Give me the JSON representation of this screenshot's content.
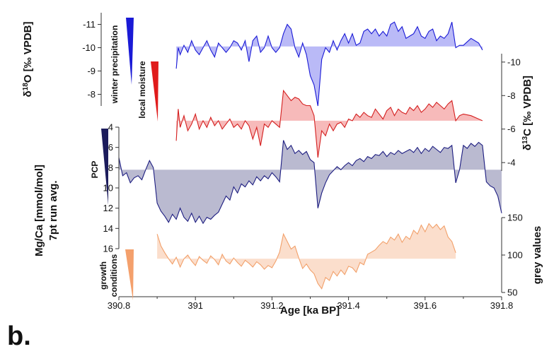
{
  "chart_data": {
    "type": "line",
    "panel_label": "b.",
    "xlabel": "Age [ka BP]",
    "xlim": [
      390.8,
      391.8
    ],
    "xticks": [
      "390.8",
      "391",
      "391.2",
      "391.4",
      "391.6",
      "391.8"
    ],
    "colors": {
      "d18O": "#1a1ad6",
      "d13C": "#d41f1f",
      "mgca": "#1c1c80",
      "grey": "#f2a06a"
    },
    "series": [
      {
        "name": "δ18O",
        "axis_label": "δ18O [‰ VPDB]",
        "axis_side": "left",
        "ylim": [
          -11.5,
          -7.5
        ],
        "reversed": true,
        "yticks": [
          "-11",
          "-10",
          "-9",
          "-8"
        ],
        "baseline": -10.05,
        "indicator": "winter precipitation",
        "x": [
          390.95,
          390.955,
          390.96,
          390.97,
          390.98,
          390.99,
          391.0,
          391.01,
          391.02,
          391.03,
          391.04,
          391.05,
          391.06,
          391.07,
          391.08,
          391.09,
          391.1,
          391.11,
          391.12,
          391.13,
          391.14,
          391.15,
          391.16,
          391.17,
          391.18,
          391.19,
          391.2,
          391.21,
          391.22,
          391.23,
          391.24,
          391.25,
          391.26,
          391.27,
          391.28,
          391.29,
          391.3,
          391.31,
          391.32,
          391.33,
          391.34,
          391.35,
          391.36,
          391.37,
          391.38,
          391.39,
          391.4,
          391.41,
          391.42,
          391.43,
          391.44,
          391.45,
          391.46,
          391.47,
          391.48,
          391.49,
          391.5,
          391.51,
          391.52,
          391.53,
          391.54,
          391.55,
          391.56,
          391.57,
          391.58,
          391.59,
          391.6,
          391.61,
          391.62,
          391.63,
          391.64,
          391.65,
          391.66,
          391.67,
          391.68,
          391.69,
          391.7,
          391.72,
          391.74,
          391.75
        ],
        "values": [
          -9.1,
          -10.0,
          -9.7,
          -10.1,
          -9.8,
          -10.3,
          -9.9,
          -9.7,
          -10.0,
          -10.3,
          -9.9,
          -9.6,
          -10.2,
          -10.0,
          -9.8,
          -10.0,
          -10.3,
          -10.2,
          -9.9,
          -10.3,
          -9.4,
          -10.3,
          -10.5,
          -9.8,
          -10.0,
          -10.5,
          -10.0,
          -9.8,
          -10.0,
          -10.6,
          -11.0,
          -10.8,
          -10.0,
          -9.6,
          -10.2,
          -9.7,
          -8.8,
          -8.4,
          -7.5,
          -9.5,
          -10.0,
          -9.8,
          -10.3,
          -9.9,
          -10.3,
          -10.6,
          -10.2,
          -10.6,
          -10.1,
          -10.2,
          -10.7,
          -10.8,
          -10.6,
          -10.8,
          -10.5,
          -10.7,
          -10.5,
          -11.0,
          -11.1,
          -10.7,
          -10.9,
          -10.4,
          -10.5,
          -10.6,
          -10.9,
          -10.5,
          -10.4,
          -10.7,
          -10.8,
          -10.3,
          -10.5,
          -10.4,
          -10.6,
          -11.1,
          -10.0,
          -10.1,
          -10.1,
          -10.4,
          -10.2,
          -9.9
        ]
      },
      {
        "name": "δ13C",
        "axis_label": "δ13C [‰ VPDB]",
        "axis_side": "right",
        "ylim": [
          -10.5,
          -3.5
        ],
        "reversed": true,
        "yticks": [
          "-10",
          "-8",
          "-6",
          "-4"
        ],
        "baseline": -6.5,
        "indicator": "local moisture",
        "x": [
          390.95,
          390.955,
          390.96,
          390.97,
          390.98,
          390.99,
          391.0,
          391.01,
          391.02,
          391.03,
          391.04,
          391.05,
          391.06,
          391.07,
          391.08,
          391.09,
          391.1,
          391.11,
          391.12,
          391.13,
          391.14,
          391.15,
          391.16,
          391.17,
          391.18,
          391.19,
          391.2,
          391.21,
          391.22,
          391.23,
          391.24,
          391.25,
          391.26,
          391.27,
          391.28,
          391.29,
          391.3,
          391.31,
          391.32,
          391.33,
          391.34,
          391.35,
          391.36,
          391.37,
          391.38,
          391.39,
          391.4,
          391.41,
          391.42,
          391.43,
          391.44,
          391.45,
          391.46,
          391.47,
          391.48,
          391.49,
          391.5,
          391.51,
          391.52,
          391.53,
          391.54,
          391.55,
          391.56,
          391.57,
          391.58,
          391.59,
          391.6,
          391.61,
          391.62,
          391.63,
          391.64,
          391.65,
          391.66,
          391.67,
          391.68,
          391.69,
          391.7,
          391.72,
          391.74,
          391.75
        ],
        "values": [
          -5.3,
          -7.2,
          -6.1,
          -6.8,
          -5.9,
          -6.3,
          -6.9,
          -6.0,
          -6.5,
          -6.1,
          -6.7,
          -6.2,
          -6.5,
          -6.0,
          -6.3,
          -6.6,
          -6.1,
          -6.3,
          -6.0,
          -6.5,
          -6.2,
          -5.4,
          -6.1,
          -5.0,
          -6.3,
          -6.1,
          -6.5,
          -6.3,
          -6.1,
          -8.3,
          -8.0,
          -7.7,
          -7.9,
          -7.8,
          -7.5,
          -7.4,
          -7.4,
          -6.8,
          -4.3,
          -5.9,
          -5.6,
          -6.3,
          -5.9,
          -6.3,
          -6.4,
          -6.1,
          -6.6,
          -6.5,
          -6.9,
          -6.7,
          -7.0,
          -6.8,
          -6.7,
          -7.2,
          -6.9,
          -6.6,
          -7.1,
          -7.3,
          -6.8,
          -7.2,
          -7.0,
          -6.9,
          -7.3,
          -7.1,
          -7.4,
          -7.0,
          -7.2,
          -7.5,
          -7.3,
          -7.6,
          -7.4,
          -7.2,
          -7.5,
          -7.7,
          -6.5,
          -6.8,
          -6.9,
          -6.8,
          -6.6,
          -6.5
        ]
      },
      {
        "name": "Mg/Ca",
        "axis_label_line1": "Mg/Ca [mmol/mol]",
        "axis_label_line2": "7pt run avg.",
        "axis_side": "left",
        "ylim": [
          4,
          16
        ],
        "reversed": true,
        "yticks": [
          "4",
          "6",
          "8",
          "10",
          "12",
          "14",
          "16"
        ],
        "baseline": 8.2,
        "indicator": "PCP",
        "x": [
          390.8,
          390.81,
          390.82,
          390.83,
          390.84,
          390.85,
          390.86,
          390.87,
          390.88,
          390.89,
          390.9,
          390.91,
          390.92,
          390.93,
          390.94,
          390.95,
          390.96,
          390.97,
          390.98,
          390.99,
          391.0,
          391.01,
          391.02,
          391.03,
          391.04,
          391.05,
          391.06,
          391.07,
          391.08,
          391.09,
          391.1,
          391.11,
          391.12,
          391.13,
          391.14,
          391.15,
          391.16,
          391.17,
          391.18,
          391.19,
          391.2,
          391.21,
          391.22,
          391.23,
          391.24,
          391.25,
          391.26,
          391.27,
          391.28,
          391.29,
          391.3,
          391.31,
          391.32,
          391.33,
          391.34,
          391.35,
          391.36,
          391.37,
          391.38,
          391.39,
          391.4,
          391.41,
          391.42,
          391.43,
          391.44,
          391.45,
          391.46,
          391.47,
          391.48,
          391.49,
          391.5,
          391.51,
          391.52,
          391.53,
          391.54,
          391.55,
          391.56,
          391.57,
          391.58,
          391.59,
          391.6,
          391.61,
          391.62,
          391.63,
          391.64,
          391.65,
          391.66,
          391.67,
          391.68,
          391.69,
          391.7,
          391.71,
          391.72,
          391.73,
          391.74,
          391.75,
          391.76,
          391.77,
          391.78,
          391.79,
          391.8
        ],
        "values": [
          7.0,
          8.8,
          8.5,
          9.5,
          9.0,
          8.8,
          9.2,
          8.2,
          7.3,
          8.0,
          11.5,
          12.3,
          12.8,
          13.4,
          12.6,
          13.1,
          12.0,
          12.9,
          13.3,
          12.5,
          13.4,
          12.8,
          13.5,
          12.9,
          13.1,
          12.7,
          12.4,
          11.6,
          10.8,
          11.2,
          9.9,
          10.5,
          9.6,
          9.9,
          9.3,
          9.7,
          8.9,
          9.3,
          8.8,
          9.1,
          8.5,
          8.9,
          9.4,
          5.3,
          6.2,
          5.8,
          6.6,
          6.3,
          6.7,
          6.4,
          7.2,
          7.5,
          12.0,
          10.5,
          9.5,
          8.7,
          8.3,
          7.9,
          8.2,
          7.8,
          7.5,
          7.8,
          7.3,
          7.1,
          7.4,
          6.9,
          7.1,
          6.7,
          6.8,
          6.4,
          6.9,
          6.5,
          6.7,
          6.3,
          6.6,
          6.4,
          6.2,
          6.5,
          6.0,
          6.6,
          6.1,
          6.4,
          5.9,
          6.2,
          6.5,
          6.0,
          6.1,
          5.8,
          9.5,
          8.2,
          5.8,
          6.1,
          5.6,
          5.9,
          5.5,
          5.8,
          9.4,
          9.8,
          10.0,
          10.8,
          12.5
        ]
      },
      {
        "name": "grey values",
        "axis_label": "grey values",
        "axis_side": "right",
        "ylim": [
          50,
          150
        ],
        "reversed": false,
        "yticks": [
          "50",
          "100",
          "150"
        ],
        "baseline": 95,
        "indicator": "growth conditions",
        "x": [
          390.9,
          390.91,
          390.92,
          390.93,
          390.94,
          390.95,
          390.96,
          390.97,
          390.98,
          390.99,
          391.0,
          391.01,
          391.02,
          391.03,
          391.04,
          391.05,
          391.06,
          391.07,
          391.08,
          391.09,
          391.1,
          391.11,
          391.12,
          391.13,
          391.14,
          391.15,
          391.16,
          391.17,
          391.18,
          391.19,
          391.2,
          391.21,
          391.22,
          391.23,
          391.24,
          391.25,
          391.26,
          391.27,
          391.28,
          391.29,
          391.3,
          391.31,
          391.32,
          391.33,
          391.34,
          391.35,
          391.36,
          391.37,
          391.38,
          391.39,
          391.4,
          391.41,
          391.42,
          391.43,
          391.44,
          391.45,
          391.46,
          391.47,
          391.48,
          391.49,
          391.5,
          391.51,
          391.52,
          391.53,
          391.54,
          391.55,
          391.56,
          391.57,
          391.58,
          391.59,
          391.6,
          391.61,
          391.62,
          391.63,
          391.64,
          391.65,
          391.66,
          391.67,
          391.68
        ],
        "values": [
          128,
          112,
          103,
          95,
          88,
          97,
          84,
          95,
          100,
          92,
          86,
          98,
          93,
          89,
          99,
          94,
          87,
          101,
          92,
          88,
          96,
          90,
          85,
          93,
          89,
          84,
          91,
          87,
          81,
          86,
          83,
          92,
          104,
          128,
          118,
          108,
          112,
          96,
          82,
          88,
          80,
          75,
          62,
          55,
          70,
          66,
          78,
          72,
          80,
          74,
          85,
          83,
          77,
          90,
          87,
          101,
          104,
          107,
          113,
          118,
          115,
          124,
          120,
          128,
          117,
          125,
          121,
          133,
          128,
          140,
          131,
          142,
          136,
          141,
          134,
          139,
          124,
          118,
          103
        ]
      }
    ]
  }
}
